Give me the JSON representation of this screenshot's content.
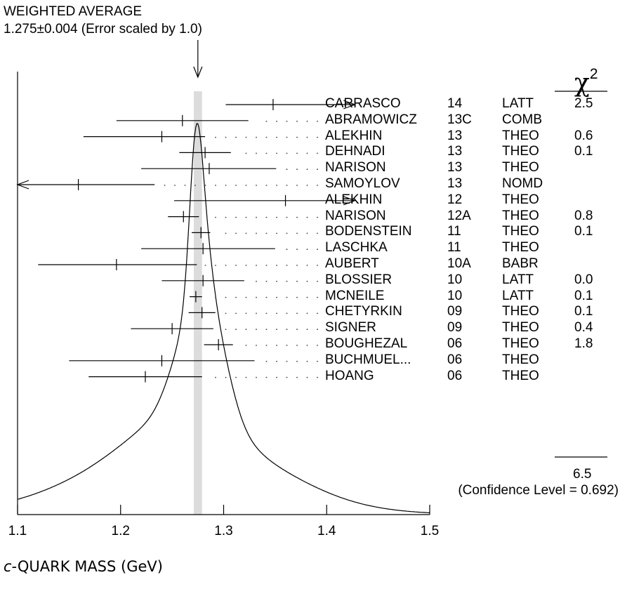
{
  "chart_data": {
    "type": "ideogram",
    "weighted_average": {
      "header": "WEIGHTED AVERAGE",
      "value_text": "1.275±0.004 (Error scaled by 1.0)",
      "value": 1.275,
      "error": 0.004
    },
    "xlabel_prefix": "c",
    "xlabel_rest": "-QUARK MASS (GeV)",
    "xlim": [
      1.1,
      1.5
    ],
    "xticks": [
      "1.1",
      "1.2",
      "1.3",
      "1.4",
      "1.5"
    ],
    "chi2_label": "χ",
    "chi2_exp": "2",
    "chi2_total": "6.5",
    "confidence_text": "(Confidence Level = 0.692)",
    "measurements": [
      {
        "name": "CARRASCO",
        "year": "14",
        "tech": "LATT",
        "chi2": "2.5",
        "value": 1.348,
        "low": 1.302,
        "high": 1.4,
        "arrow": "right"
      },
      {
        "name": "ABRAMOWICZ",
        "year": "13C",
        "tech": "COMB",
        "chi2": "",
        "value": 1.26,
        "low": 1.196,
        "high": 1.324
      },
      {
        "name": "ALEKHIN",
        "year": "13",
        "tech": "THEO",
        "chi2": "0.6",
        "value": 1.24,
        "low": 1.164,
        "high": 1.282
      },
      {
        "name": "DEHNADI",
        "year": "13",
        "tech": "THEO",
        "chi2": "0.1",
        "value": 1.282,
        "low": 1.257,
        "high": 1.307
      },
      {
        "name": "NARISON",
        "year": "13",
        "tech": "THEO",
        "chi2": "",
        "value": 1.286,
        "low": 1.22,
        "high": 1.351
      },
      {
        "name": "SAMOYLOV",
        "year": "13",
        "tech": "NOMD",
        "chi2": "",
        "value": 1.159,
        "low": 1.1,
        "high": 1.233,
        "arrow": "left"
      },
      {
        "name": "ALEKHIN",
        "year": "12",
        "tech": "THEO",
        "chi2": "",
        "value": 1.36,
        "low": 1.252,
        "high": 1.4,
        "arrow": "right"
      },
      {
        "name": "NARISON",
        "year": "12A",
        "tech": "THEO",
        "chi2": "0.8",
        "value": 1.261,
        "low": 1.246,
        "high": 1.276
      },
      {
        "name": "BODENSTEIN",
        "year": "11",
        "tech": "THEO",
        "chi2": "0.1",
        "value": 1.278,
        "low": 1.269,
        "high": 1.287
      },
      {
        "name": "LASCHKA",
        "year": "11",
        "tech": "THEO",
        "chi2": "",
        "value": 1.28,
        "low": 1.22,
        "high": 1.35
      },
      {
        "name": "AUBERT",
        "year": "10A",
        "tech": "BABR",
        "chi2": "",
        "value": 1.196,
        "low": 1.12,
        "high": 1.274
      },
      {
        "name": "BLOSSIER",
        "year": "10",
        "tech": "LATT",
        "chi2": "0.0",
        "value": 1.28,
        "low": 1.24,
        "high": 1.32
      },
      {
        "name": "MCNEILE",
        "year": "10",
        "tech": "LATT",
        "chi2": "0.1",
        "value": 1.273,
        "low": 1.267,
        "high": 1.279
      },
      {
        "name": "CHETYRKIN",
        "year": "09",
        "tech": "THEO",
        "chi2": "0.1",
        "value": 1.279,
        "low": 1.266,
        "high": 1.292
      },
      {
        "name": "SIGNER",
        "year": "09",
        "tech": "THEO",
        "chi2": "0.4",
        "value": 1.25,
        "low": 1.21,
        "high": 1.29
      },
      {
        "name": "BOUGHEZAL",
        "year": "06",
        "tech": "THEO",
        "chi2": "1.8",
        "value": 1.295,
        "low": 1.281,
        "high": 1.309
      },
      {
        "name": "BUCHMUEL...",
        "year": "06",
        "tech": "THEO",
        "chi2": "",
        "value": 1.24,
        "low": 1.15,
        "high": 1.33
      },
      {
        "name": "HOANG",
        "year": "06",
        "tech": "THEO",
        "chi2": "",
        "value": 1.224,
        "low": 1.169,
        "high": 1.279
      }
    ]
  }
}
